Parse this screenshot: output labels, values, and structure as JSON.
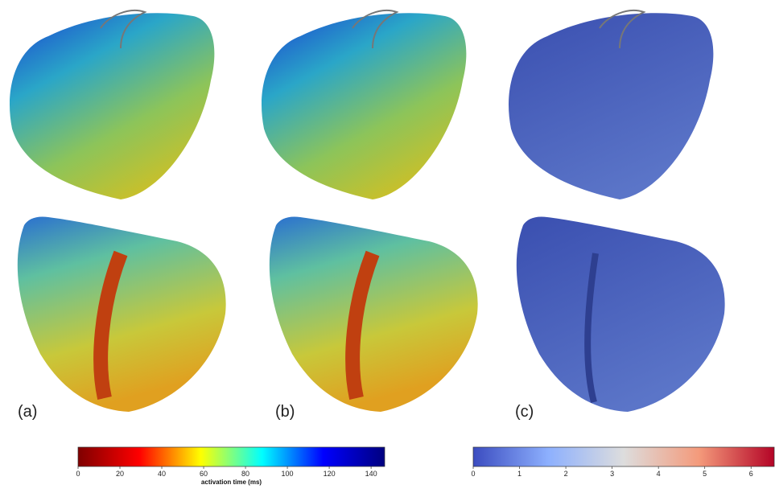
{
  "panels": [
    {
      "label": "(a)"
    },
    {
      "label": "(b)"
    },
    {
      "label": "(c)"
    }
  ],
  "colorbars": [
    {
      "label": "activation time (ms)",
      "lim": [
        0,
        146.5
      ],
      "ticks": [
        0,
        20,
        40,
        60,
        80,
        100,
        120,
        140
      ],
      "colors": [
        "#7f0000",
        "#ff0000",
        "#ffff00",
        "#00ffff",
        "#0000ff",
        "#00007f"
      ]
    },
    {
      "lim": [
        0,
        6.5
      ],
      "ticks": [
        0,
        1,
        2,
        3,
        4,
        5,
        6
      ],
      "colors": [
        "#3b4cc0",
        "#8db0fe",
        "#dddddd",
        "#f49a7b",
        "#b40426"
      ]
    }
  ]
}
